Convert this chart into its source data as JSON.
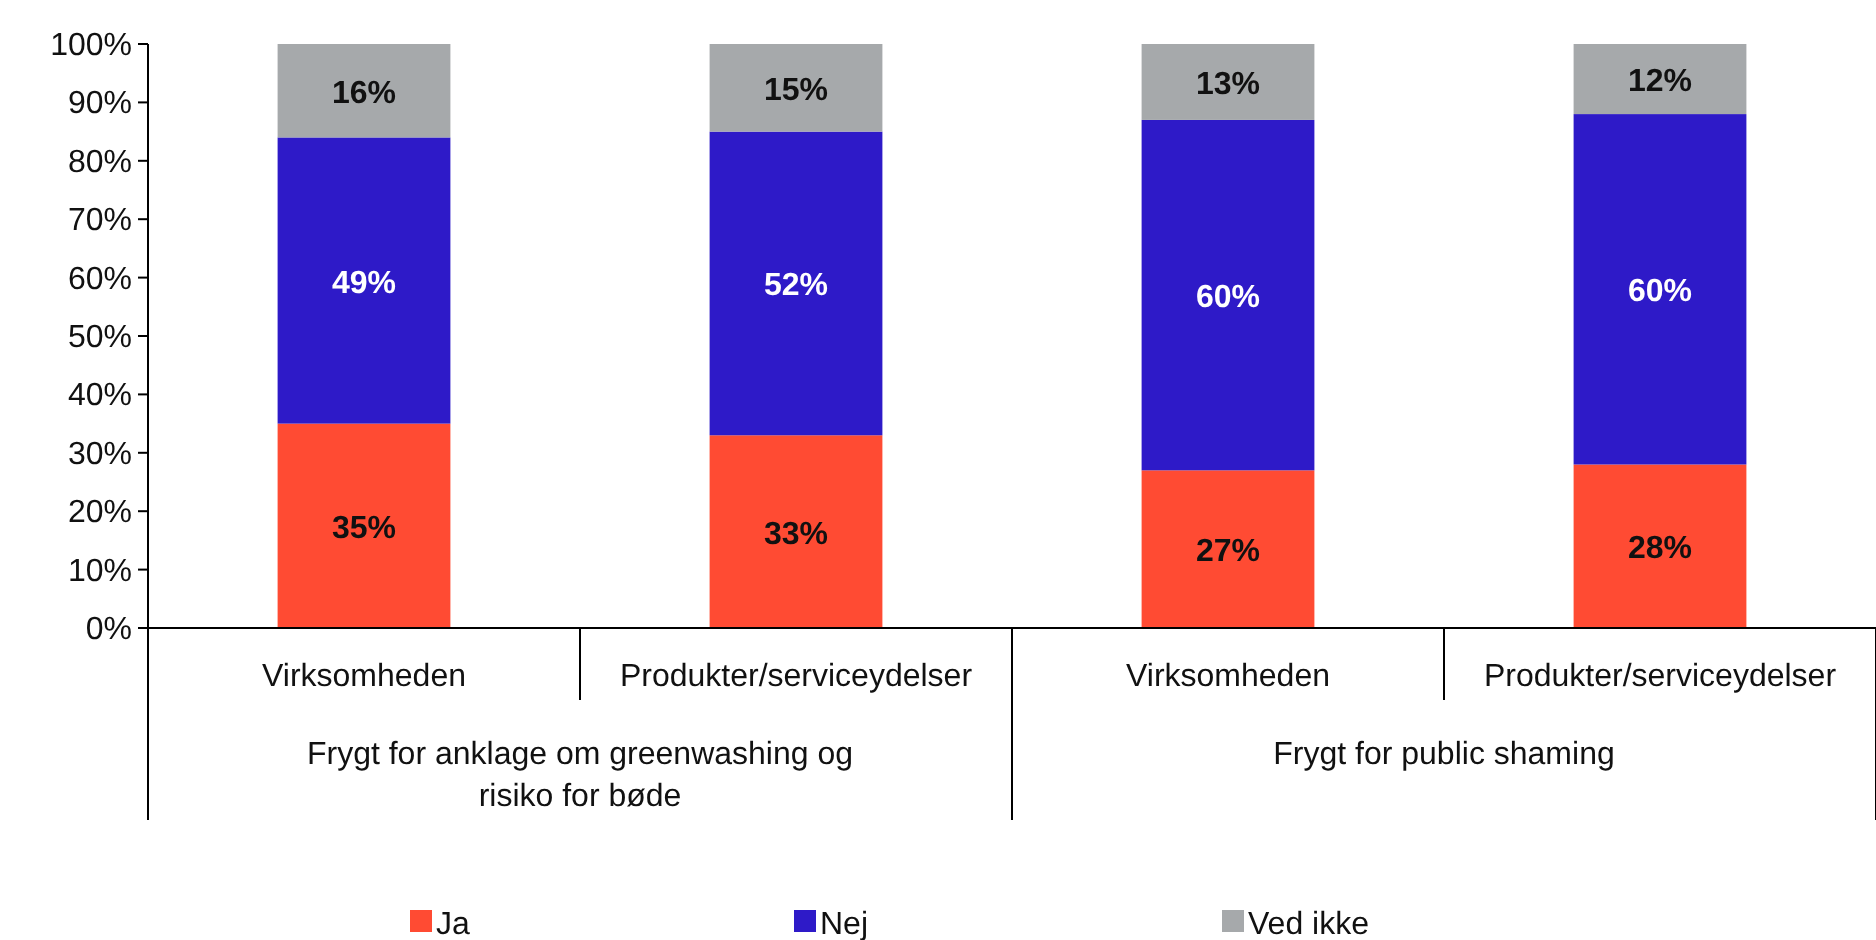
{
  "chart_data": {
    "type": "bar",
    "stacked": true,
    "categories": [
      "Virksomheden",
      "Produkter/serviceydelser",
      "Virksomheden",
      "Produkter/serviceydelser"
    ],
    "series": [
      {
        "name": "Ja",
        "color": "#ff4b33",
        "values": [
          35,
          33,
          27,
          28
        ],
        "value_labels": [
          "35%",
          "33%",
          "27%",
          "28%"
        ]
      },
      {
        "name": "Nej",
        "color": "#2e1ac8",
        "values": [
          49,
          52,
          60,
          60
        ],
        "value_labels": [
          "49%",
          "52%",
          "60%",
          "60%"
        ]
      },
      {
        "name": "Ved ikke",
        "color": "#a6a9ab",
        "values": [
          16,
          15,
          13,
          12
        ],
        "value_labels": [
          "16%",
          "15%",
          "13%",
          "12%"
        ]
      }
    ],
    "ylim": [
      0,
      100
    ],
    "yticks": [
      {
        "value": 0,
        "label": "0%"
      },
      {
        "value": 10,
        "label": "10%"
      },
      {
        "value": 20,
        "label": "20%"
      },
      {
        "value": 30,
        "label": "30%"
      },
      {
        "value": 40,
        "label": "40%"
      },
      {
        "value": 50,
        "label": "50%"
      },
      {
        "value": 60,
        "label": "60%"
      },
      {
        "value": 70,
        "label": "70%"
      },
      {
        "value": 80,
        "label": "80%"
      },
      {
        "value": 90,
        "label": "90%"
      },
      {
        "value": 100,
        "label": "100%"
      }
    ],
    "annotations": [
      "Frygt for anklage om greenwashing og risiko for bøde",
      "Frygt for public shaming"
    ],
    "legend": "bottom",
    "grid": false
  }
}
